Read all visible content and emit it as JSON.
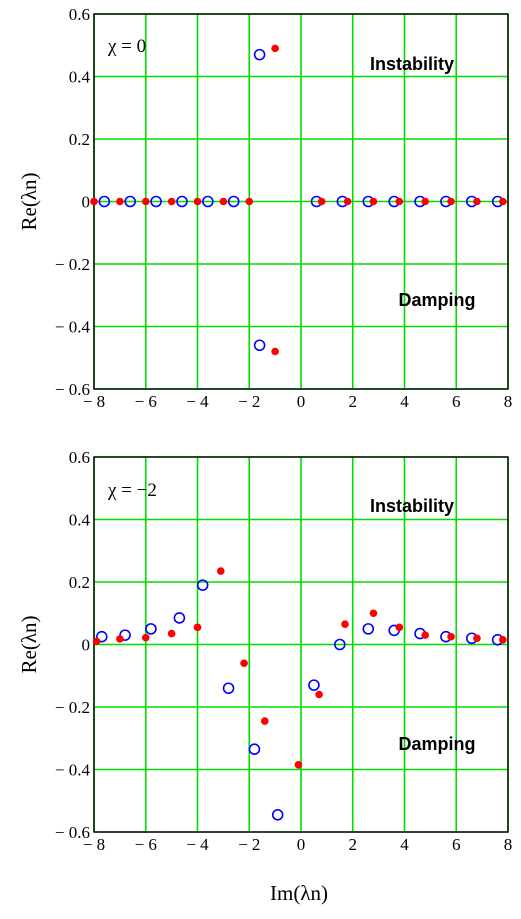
{
  "chart_data": [
    {
      "type": "scatter",
      "annotation": "χ = 0",
      "ylabel": "Re(λn)",
      "xlim": [
        -8,
        8
      ],
      "ylim": [
        -0.6,
        0.6
      ],
      "xticks": [
        "− 8",
        "− 6",
        "− 4",
        "− 2",
        "0",
        "2",
        "4",
        "6",
        "8"
      ],
      "yticks": [
        "0.6",
        "0.4",
        "0.2",
        "0",
        "− 0.2",
        "− 0.4",
        "− 0.6"
      ],
      "grid": true,
      "regions": [
        "Instability",
        "Damping"
      ],
      "series": [
        {
          "color": "#0000ff",
          "marker": "open-circle",
          "points": [
            [
              -7.6,
              0
            ],
            [
              -6.6,
              0
            ],
            [
              -5.6,
              0
            ],
            [
              -4.6,
              0
            ],
            [
              -3.6,
              0
            ],
            [
              -2.6,
              0
            ],
            [
              -1.6,
              0.47
            ],
            [
              -1.6,
              -0.46
            ],
            [
              0.6,
              0
            ],
            [
              1.6,
              0
            ],
            [
              2.6,
              0
            ],
            [
              3.6,
              0
            ],
            [
              4.6,
              0
            ],
            [
              5.6,
              0
            ],
            [
              6.6,
              0
            ],
            [
              7.6,
              0
            ]
          ]
        },
        {
          "color": "#ff0000",
          "marker": "filled-dot",
          "points": [
            [
              -8,
              0
            ],
            [
              -7.0,
              0
            ],
            [
              -6.0,
              0
            ],
            [
              -5.0,
              0
            ],
            [
              -4.0,
              0
            ],
            [
              -3.0,
              0
            ],
            [
              -2.0,
              0
            ],
            [
              -1.0,
              0.49
            ],
            [
              -1.0,
              -0.48
            ],
            [
              0.8,
              0
            ],
            [
              1.8,
              0
            ],
            [
              2.8,
              0
            ],
            [
              3.8,
              0
            ],
            [
              4.8,
              0
            ],
            [
              5.8,
              0
            ],
            [
              6.8,
              0
            ],
            [
              7.8,
              0
            ]
          ]
        }
      ]
    },
    {
      "type": "scatter",
      "annotation": "χ = −2",
      "ylabel": "Re(λn)",
      "xlabel": "Im(λn)",
      "xlim": [
        -8,
        8
      ],
      "ylim": [
        -0.6,
        0.6
      ],
      "xticks": [
        "− 8",
        "− 6",
        "− 4",
        "− 2",
        "0",
        "2",
        "4",
        "6",
        "8"
      ],
      "yticks": [
        "0.6",
        "0.4",
        "0.2",
        "0",
        "− 0.2",
        "− 0.4",
        "− 0.6"
      ],
      "grid": true,
      "regions": [
        "Instability",
        "Damping"
      ],
      "series": [
        {
          "color": "#0000ff",
          "marker": "open-circle",
          "points": [
            [
              -7.7,
              0.025
            ],
            [
              -6.8,
              0.03
            ],
            [
              -5.8,
              0.05
            ],
            [
              -4.7,
              0.085
            ],
            [
              -3.8,
              0.19
            ],
            [
              -2.8,
              -0.14
            ],
            [
              -1.8,
              -0.335
            ],
            [
              -0.9,
              -0.545
            ],
            [
              0.5,
              -0.13
            ],
            [
              1.5,
              0.0
            ],
            [
              2.6,
              0.05
            ],
            [
              3.6,
              0.045
            ],
            [
              4.6,
              0.035
            ],
            [
              5.6,
              0.025
            ],
            [
              6.6,
              0.02
            ],
            [
              7.6,
              0.015
            ]
          ]
        },
        {
          "color": "#ff0000",
          "marker": "filled-dot",
          "points": [
            [
              -7.9,
              0.01
            ],
            [
              -7.0,
              0.018
            ],
            [
              -6.0,
              0.022
            ],
            [
              -5.0,
              0.035
            ],
            [
              -4.0,
              0.055
            ],
            [
              -3.1,
              0.235
            ],
            [
              -2.2,
              -0.06
            ],
            [
              -1.4,
              -0.245
            ],
            [
              -0.1,
              -0.385
            ],
            [
              0.7,
              -0.16
            ],
            [
              1.7,
              0.065
            ],
            [
              2.8,
              0.1
            ],
            [
              3.8,
              0.055
            ],
            [
              4.8,
              0.03
            ],
            [
              5.8,
              0.025
            ],
            [
              6.8,
              0.02
            ],
            [
              7.8,
              0.015
            ]
          ]
        }
      ]
    }
  ]
}
